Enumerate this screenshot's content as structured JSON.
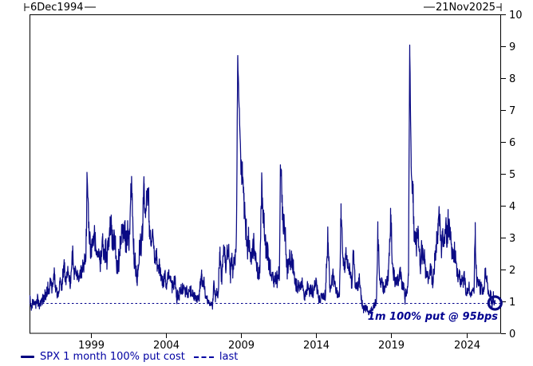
{
  "header": {
    "start_date": "6Dec1994",
    "end_date": "21Nov2025"
  },
  "legend": {
    "series_label": "SPX 1 month 100% put cost",
    "last_label": "last"
  },
  "annotation": "1m 100% put @ 95bps",
  "colors": {
    "series_line": "#0a0a84",
    "legend_text": "#0000a2",
    "annotation_text": "#000090",
    "last_dash_line": "#00008b",
    "axis": "#000000"
  },
  "chart_data": {
    "type": "line",
    "title": "",
    "xlabel": "",
    "ylabel": "",
    "x_axis": {
      "unit": "year",
      "domain": [
        1994.93,
        2026.3
      ],
      "ticks": [
        1999,
        2004,
        2009,
        2014,
        2019,
        2024
      ]
    },
    "y_axis": {
      "range": [
        0,
        10
      ],
      "ticks": [
        0,
        1,
        2,
        3,
        4,
        5,
        6,
        7,
        8,
        9,
        10
      ],
      "side": "right"
    },
    "grid": false,
    "legend_position": "bottom-left",
    "last_line": {
      "label": "last",
      "value": 0.95,
      "style": "dashed"
    },
    "last_point": {
      "date": "21Nov2025",
      "year": 2025.89,
      "value": 0.95,
      "marker": "open-circle"
    },
    "series": [
      {
        "name": "SPX 1 month 100% put cost",
        "points": [
          [
            1994.95,
            1.05
          ],
          [
            1995.05,
            0.78
          ],
          [
            1995.2,
            1.0
          ],
          [
            1995.35,
            0.88
          ],
          [
            1995.5,
            1.05
          ],
          [
            1995.65,
            0.92
          ],
          [
            1995.8,
            1.12
          ],
          [
            1996.0,
            1.1
          ],
          [
            1996.15,
            1.35
          ],
          [
            1996.3,
            1.62
          ],
          [
            1996.45,
            1.3
          ],
          [
            1996.6,
            1.85
          ],
          [
            1996.75,
            1.4
          ],
          [
            1996.9,
            1.45
          ],
          [
            1997.05,
            1.55
          ],
          [
            1997.2,
            1.85
          ],
          [
            1997.35,
            1.5
          ],
          [
            1997.5,
            1.7
          ],
          [
            1997.65,
            1.6
          ],
          [
            1997.8,
            2.5
          ],
          [
            1997.9,
            2.0
          ],
          [
            1998.05,
            1.85
          ],
          [
            1998.2,
            1.6
          ],
          [
            1998.4,
            1.75
          ],
          [
            1998.55,
            1.95
          ],
          [
            1998.67,
            2.6
          ],
          [
            1998.75,
            4.85
          ],
          [
            1998.85,
            3.4
          ],
          [
            1999.0,
            2.45
          ],
          [
            1999.15,
            2.3
          ],
          [
            1999.3,
            2.65
          ],
          [
            1999.5,
            2.2
          ],
          [
            1999.65,
            2.5
          ],
          [
            1999.8,
            2.95
          ],
          [
            1999.95,
            2.45
          ],
          [
            2000.1,
            2.7
          ],
          [
            2000.3,
            3.3
          ],
          [
            2000.45,
            2.7
          ],
          [
            2000.6,
            2.95
          ],
          [
            2000.8,
            2.6
          ],
          [
            2000.95,
            2.85
          ],
          [
            2001.1,
            3.0
          ],
          [
            2001.25,
            3.35
          ],
          [
            2001.45,
            2.7
          ],
          [
            2001.6,
            2.9
          ],
          [
            2001.72,
            4.55
          ],
          [
            2001.85,
            3.1
          ],
          [
            2002.0,
            2.5
          ],
          [
            2002.15,
            2.4
          ],
          [
            2002.3,
            2.9
          ],
          [
            2002.45,
            3.5
          ],
          [
            2002.55,
            4.9
          ],
          [
            2002.65,
            3.9
          ],
          [
            2002.78,
            4.65
          ],
          [
            2002.9,
            3.6
          ],
          [
            2003.05,
            3.1
          ],
          [
            2003.2,
            2.7
          ],
          [
            2003.4,
            2.2
          ],
          [
            2003.6,
            2.0
          ],
          [
            2003.8,
            1.85
          ],
          [
            2004.0,
            1.6
          ],
          [
            2004.2,
            1.75
          ],
          [
            2004.4,
            1.55
          ],
          [
            2004.6,
            1.65
          ],
          [
            2004.8,
            1.35
          ],
          [
            2005.0,
            1.3
          ],
          [
            2005.2,
            1.5
          ],
          [
            2005.4,
            1.3
          ],
          [
            2005.6,
            1.2
          ],
          [
            2005.8,
            1.3
          ],
          [
            2006.0,
            1.15
          ],
          [
            2006.2,
            1.1
          ],
          [
            2006.38,
            1.8
          ],
          [
            2006.55,
            1.35
          ],
          [
            2006.75,
            1.1
          ],
          [
            2006.95,
            1.0
          ],
          [
            2007.1,
            0.85
          ],
          [
            2007.17,
            1.6
          ],
          [
            2007.3,
            1.1
          ],
          [
            2007.45,
            1.35
          ],
          [
            2007.6,
            2.6
          ],
          [
            2007.72,
            1.9
          ],
          [
            2007.85,
            2.55
          ],
          [
            2008.0,
            2.3
          ],
          [
            2008.15,
            2.65
          ],
          [
            2008.3,
            2.2
          ],
          [
            2008.45,
            1.95
          ],
          [
            2008.6,
            2.3
          ],
          [
            2008.7,
            3.3
          ],
          [
            2008.78,
            8.7
          ],
          [
            2008.85,
            7.55
          ],
          [
            2008.95,
            6.0
          ],
          [
            2009.05,
            4.85
          ],
          [
            2009.2,
            4.2
          ],
          [
            2009.35,
            3.4
          ],
          [
            2009.5,
            3.0
          ],
          [
            2009.65,
            2.65
          ],
          [
            2009.8,
            2.8
          ],
          [
            2009.95,
            2.3
          ],
          [
            2010.1,
            2.0
          ],
          [
            2010.25,
            1.9
          ],
          [
            2010.37,
            4.35
          ],
          [
            2010.5,
            3.3
          ],
          [
            2010.65,
            2.5
          ],
          [
            2010.8,
            2.1
          ],
          [
            2010.95,
            1.85
          ],
          [
            2011.1,
            1.75
          ],
          [
            2011.25,
            1.95
          ],
          [
            2011.4,
            1.65
          ],
          [
            2011.55,
            1.7
          ],
          [
            2011.62,
            4.85
          ],
          [
            2011.75,
            3.9
          ],
          [
            2011.85,
            3.4
          ],
          [
            2011.95,
            3.1
          ],
          [
            2012.1,
            2.2
          ],
          [
            2012.25,
            1.9
          ],
          [
            2012.4,
            2.15
          ],
          [
            2012.55,
            1.75
          ],
          [
            2012.7,
            1.6
          ],
          [
            2012.9,
            1.55
          ],
          [
            2013.05,
            1.45
          ],
          [
            2013.25,
            1.25
          ],
          [
            2013.45,
            1.4
          ],
          [
            2013.65,
            1.35
          ],
          [
            2013.85,
            1.3
          ],
          [
            2014.0,
            1.5
          ],
          [
            2014.2,
            1.25
          ],
          [
            2014.4,
            1.15
          ],
          [
            2014.6,
            1.3
          ],
          [
            2014.77,
            2.65
          ],
          [
            2014.9,
            1.7
          ],
          [
            2015.05,
            1.95
          ],
          [
            2015.2,
            1.55
          ],
          [
            2015.4,
            1.4
          ],
          [
            2015.55,
            1.35
          ],
          [
            2015.65,
            3.85
          ],
          [
            2015.78,
            2.35
          ],
          [
            2015.9,
            2.1
          ],
          [
            2016.05,
            2.95
          ],
          [
            2016.2,
            1.9
          ],
          [
            2016.35,
            1.6
          ],
          [
            2016.48,
            2.3
          ],
          [
            2016.6,
            1.5
          ],
          [
            2016.75,
            1.4
          ],
          [
            2016.85,
            1.85
          ],
          [
            2017.0,
            1.1
          ],
          [
            2017.15,
            0.9
          ],
          [
            2017.3,
            0.8
          ],
          [
            2017.5,
            0.72
          ],
          [
            2017.7,
            0.78
          ],
          [
            2017.85,
            0.9
          ],
          [
            2018.0,
            1.05
          ],
          [
            2018.1,
            3.3
          ],
          [
            2018.22,
            1.95
          ],
          [
            2018.35,
            1.55
          ],
          [
            2018.5,
            1.3
          ],
          [
            2018.65,
            1.45
          ],
          [
            2018.8,
            1.8
          ],
          [
            2018.95,
            3.6
          ],
          [
            2019.05,
            2.2
          ],
          [
            2019.2,
            1.75
          ],
          [
            2019.35,
            1.6
          ],
          [
            2019.45,
            1.95
          ],
          [
            2019.6,
            2.0
          ],
          [
            2019.75,
            1.55
          ],
          [
            2019.9,
            1.35
          ],
          [
            2020.05,
            1.3
          ],
          [
            2020.14,
            1.7
          ],
          [
            2020.22,
            9.05
          ],
          [
            2020.32,
            5.2
          ],
          [
            2020.45,
            4.2
          ],
          [
            2020.55,
            3.1
          ],
          [
            2020.68,
            2.7
          ],
          [
            2020.8,
            3.3
          ],
          [
            2020.9,
            2.7
          ],
          [
            2021.0,
            2.85
          ],
          [
            2021.12,
            2.35
          ],
          [
            2021.25,
            2.0
          ],
          [
            2021.4,
            1.75
          ],
          [
            2021.5,
            1.6
          ],
          [
            2021.62,
            1.9
          ],
          [
            2021.75,
            1.55
          ],
          [
            2021.88,
            2.3
          ],
          [
            2022.0,
            2.6
          ],
          [
            2022.1,
            2.9
          ],
          [
            2022.2,
            3.6
          ],
          [
            2022.32,
            2.75
          ],
          [
            2022.45,
            3.15
          ],
          [
            2022.55,
            2.8
          ],
          [
            2022.65,
            3.1
          ],
          [
            2022.78,
            3.5
          ],
          [
            2022.9,
            2.7
          ],
          [
            2023.0,
            2.35
          ],
          [
            2023.15,
            2.1
          ],
          [
            2023.22,
            2.4
          ],
          [
            2023.35,
            1.85
          ],
          [
            2023.5,
            1.6
          ],
          [
            2023.65,
            1.5
          ],
          [
            2023.78,
            1.8
          ],
          [
            2023.9,
            1.5
          ],
          [
            2024.05,
            1.35
          ],
          [
            2024.2,
            1.45
          ],
          [
            2024.35,
            1.3
          ],
          [
            2024.5,
            1.2
          ],
          [
            2024.58,
            3.2
          ],
          [
            2024.68,
            1.8
          ],
          [
            2024.8,
            1.45
          ],
          [
            2024.92,
            1.35
          ],
          [
            2025.05,
            1.3
          ],
          [
            2025.15,
            1.55
          ],
          [
            2025.27,
            1.95
          ],
          [
            2025.4,
            1.45
          ],
          [
            2025.5,
            1.1
          ],
          [
            2025.6,
            1.3
          ],
          [
            2025.7,
            0.95
          ],
          [
            2025.78,
            1.15
          ],
          [
            2025.85,
            1.0
          ],
          [
            2025.89,
            0.95
          ]
        ]
      }
    ]
  }
}
